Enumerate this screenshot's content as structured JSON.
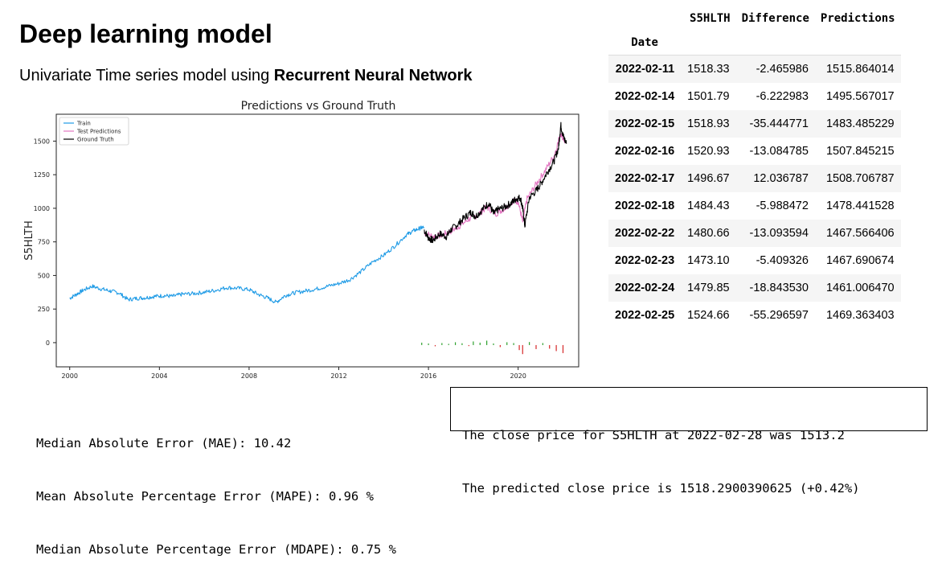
{
  "slide": {
    "title": "Deep learning model",
    "subtitle_prefix": "Univariate Time series model using ",
    "subtitle_bold": "Recurrent Neural Network"
  },
  "metrics": [
    "Median Absolute Error (MAE): 10.42",
    "Mean Absolute Percentage Error (MAPE): 0.96 %",
    "Median Absolute Percentage Error (MDAPE): 0.75 %"
  ],
  "result": [
    "The close price for S5HLTH at 2022-02-28 was 1513.2",
    "The predicted close price is 1518.2900390625 (+0.42%)"
  ],
  "table": {
    "index_name": "Date",
    "columns": [
      "S5HLTH",
      "Difference",
      "Predictions"
    ],
    "rows": [
      {
        "date": "2022-02-11",
        "values": [
          "1518.33",
          "-2.465986",
          "1515.864014"
        ]
      },
      {
        "date": "2022-02-14",
        "values": [
          "1501.79",
          "-6.222983",
          "1495.567017"
        ]
      },
      {
        "date": "2022-02-15",
        "values": [
          "1518.93",
          "-35.444771",
          "1483.485229"
        ]
      },
      {
        "date": "2022-02-16",
        "values": [
          "1520.93",
          "-13.084785",
          "1507.845215"
        ]
      },
      {
        "date": "2022-02-17",
        "values": [
          "1496.67",
          "12.036787",
          "1508.706787"
        ]
      },
      {
        "date": "2022-02-18",
        "values": [
          "1484.43",
          "-5.988472",
          "1478.441528"
        ]
      },
      {
        "date": "2022-02-22",
        "values": [
          "1480.66",
          "-13.093594",
          "1467.566406"
        ]
      },
      {
        "date": "2022-02-23",
        "values": [
          "1473.10",
          "-5.409326",
          "1467.690674"
        ]
      },
      {
        "date": "2022-02-24",
        "values": [
          "1479.85",
          "-18.843530",
          "1461.006470"
        ]
      },
      {
        "date": "2022-02-25",
        "values": [
          "1524.66",
          "-55.296597",
          "1469.363403"
        ]
      }
    ]
  },
  "chart_data": {
    "type": "line",
    "title": "Predictions vs Ground Truth",
    "xlabel": "",
    "ylabel": "S5HLTH",
    "xlim": [
      1999.4,
      2022.7
    ],
    "ylim": [
      -180,
      1700
    ],
    "xticks": [
      2000,
      2004,
      2008,
      2012,
      2016,
      2020
    ],
    "yticks": [
      0,
      250,
      500,
      750,
      1000,
      1250,
      1500
    ],
    "grid": false,
    "legend_position": "top-left",
    "colors": {
      "train": "#1f9be6",
      "test": "#e377c2",
      "truth": "#000000",
      "pos_diff": "#2ca02c",
      "neg_diff": "#d62728"
    },
    "series": [
      {
        "name": "Train",
        "x": [
          2000.0,
          2000.3,
          2000.6,
          2001.0,
          2001.4,
          2001.8,
          2002.2,
          2002.6,
          2003.0,
          2003.4,
          2003.8,
          2004.2,
          2004.6,
          2005.0,
          2005.5,
          2006.0,
          2006.5,
          2007.0,
          2007.5,
          2008.0,
          2008.4,
          2008.8,
          2009.2,
          2009.6,
          2010.0,
          2010.5,
          2011.0,
          2011.5,
          2012.0,
          2012.5,
          2013.0,
          2013.5,
          2014.0,
          2014.5,
          2015.0,
          2015.3,
          2015.6,
          2015.8
        ],
        "values": [
          330,
          360,
          390,
          420,
          400,
          385,
          370,
          320,
          330,
          335,
          345,
          350,
          345,
          360,
          365,
          375,
          390,
          410,
          405,
          395,
          360,
          335,
          300,
          350,
          370,
          385,
          400,
          420,
          440,
          470,
          530,
          600,
          650,
          720,
          800,
          830,
          850,
          860
        ]
      },
      {
        "name": "Test Predictions",
        "x": [
          2015.8,
          2016.2,
          2016.6,
          2017.0,
          2017.4,
          2017.8,
          2018.2,
          2018.6,
          2019.0,
          2019.4,
          2019.8,
          2020.0,
          2020.2,
          2020.4,
          2020.8,
          2021.2,
          2021.6,
          2021.9,
          2022.1
        ],
        "values": [
          820,
          790,
          800,
          830,
          870,
          920,
          950,
          1010,
          960,
          1000,
          1060,
          1050,
          900,
          1070,
          1180,
          1280,
          1390,
          1560,
          1490
        ]
      },
      {
        "name": "Ground Truth",
        "x": [
          2015.8,
          2016.0,
          2016.2,
          2016.5,
          2016.8,
          2017.0,
          2017.3,
          2017.6,
          2017.9,
          2018.1,
          2018.4,
          2018.7,
          2018.9,
          2019.1,
          2019.4,
          2019.7,
          2019.9,
          2020.1,
          2020.2,
          2020.3,
          2020.5,
          2020.8,
          2021.0,
          2021.3,
          2021.6,
          2021.8,
          2021.9,
          2022.0,
          2022.15
        ],
        "values": [
          840,
          780,
          760,
          810,
          790,
          840,
          880,
          930,
          970,
          940,
          990,
          1040,
          960,
          990,
          1010,
          1040,
          1070,
          1080,
          1000,
          870,
          1080,
          1130,
          1180,
          1270,
          1350,
          1450,
          1620,
          1540,
          1480
        ]
      }
    ],
    "difference_bars": {
      "x": [
        2015.7,
        2016.0,
        2016.3,
        2016.6,
        2016.9,
        2017.2,
        2017.5,
        2017.8,
        2018.0,
        2018.3,
        2018.6,
        2018.9,
        2019.2,
        2019.5,
        2019.8,
        2020.05,
        2020.2,
        2020.5,
        2020.8,
        2021.1,
        2021.4,
        2021.7,
        2022.0
      ],
      "values": [
        12,
        8,
        -6,
        10,
        6,
        14,
        9,
        -5,
        18,
        12,
        22,
        8,
        -10,
        14,
        10,
        -25,
        -45,
        15,
        -20,
        10,
        -18,
        -30,
        -40
      ]
    }
  }
}
